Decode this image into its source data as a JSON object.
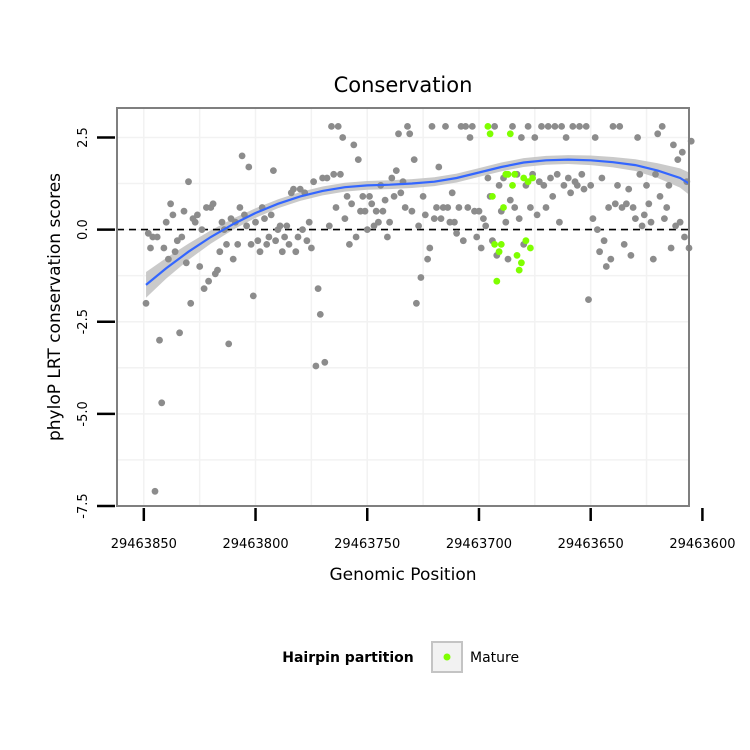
{
  "chart_data": {
    "type": "scatter",
    "title": "Conservation",
    "xlabel": "Genomic Position",
    "ylabel": "phyloP LRT conservation scores",
    "x_reversed": true,
    "xlim": [
      29463862,
      29463606
    ],
    "ylim": [
      -7.5,
      3.3
    ],
    "x_ticks": [
      29463850,
      29463800,
      29463750,
      29463700,
      29463650,
      29463600
    ],
    "x_tick_labels": [
      "29463850",
      "29463800",
      "29463750",
      "29463700",
      "29463650",
      "29463600"
    ],
    "y_ticks": [
      -7.5,
      -5.0,
      -2.5,
      0.0,
      2.5
    ],
    "y_tick_labels": [
      "-7.5",
      "-5.0",
      "-2.5",
      "0.0",
      "2.5"
    ],
    "hline": {
      "y": 0,
      "style": "dashed",
      "color": "#000000"
    },
    "grid": true,
    "colors": {
      "other": "#8c8c8c",
      "mature": "#7fff00",
      "smooth": "#3366ff",
      "ribbon": "#c4c4c4",
      "panel_border": "#7f7f7f",
      "grid": "#f2f2f2"
    },
    "legend": {
      "title": "Hairpin partition",
      "placement": "bottom",
      "entries": [
        {
          "label": "Mature",
          "color": "#7fff00"
        }
      ]
    },
    "series": [
      {
        "group": "other",
        "points": [
          [
            29463849,
            -2.0
          ],
          [
            29463848,
            -0.1
          ],
          [
            29463847,
            -0.5
          ],
          [
            29463846,
            -0.2
          ],
          [
            29463845,
            -7.1
          ],
          [
            29463844,
            -0.2
          ],
          [
            29463843,
            -3.0
          ],
          [
            29463842,
            -4.7
          ],
          [
            29463841,
            -0.5
          ],
          [
            29463840,
            0.2
          ],
          [
            29463839,
            -0.8
          ],
          [
            29463838,
            0.7
          ],
          [
            29463837,
            0.4
          ],
          [
            29463836,
            -0.6
          ],
          [
            29463835,
            -0.3
          ],
          [
            29463834,
            -2.8
          ],
          [
            29463833,
            -0.2
          ],
          [
            29463832,
            0.5
          ],
          [
            29463831,
            -0.9
          ],
          [
            29463830,
            1.3
          ],
          [
            29463829,
            -2.0
          ],
          [
            29463828,
            0.3
          ],
          [
            29463827,
            0.2
          ],
          [
            29463826,
            0.4
          ],
          [
            29463825,
            -1.0
          ],
          [
            29463824,
            0.0
          ],
          [
            29463823,
            -1.6
          ],
          [
            29463822,
            0.6
          ],
          [
            29463821,
            -1.4
          ],
          [
            29463820,
            0.6
          ],
          [
            29463819,
            0.7
          ],
          [
            29463818,
            -1.2
          ],
          [
            29463817,
            -1.1
          ],
          [
            29463816,
            -0.6
          ],
          [
            29463815,
            0.2
          ],
          [
            29463814,
            0.0
          ],
          [
            29463813,
            -0.4
          ],
          [
            29463812,
            -3.1
          ],
          [
            29463811,
            0.3
          ],
          [
            29463810,
            -0.8
          ],
          [
            29463809,
            0.2
          ],
          [
            29463808,
            -0.4
          ],
          [
            29463807,
            0.6
          ],
          [
            29463806,
            2.0
          ],
          [
            29463805,
            0.4
          ],
          [
            29463804,
            0.1
          ],
          [
            29463803,
            1.7
          ],
          [
            29463802,
            -0.4
          ],
          [
            29463801,
            -1.8
          ],
          [
            29463800,
            0.2
          ],
          [
            29463799,
            -0.3
          ],
          [
            29463798,
            -0.6
          ],
          [
            29463797,
            0.6
          ],
          [
            29463796,
            0.3
          ],
          [
            29463795,
            -0.4
          ],
          [
            29463794,
            -0.2
          ],
          [
            29463793,
            0.4
          ],
          [
            29463792,
            1.6
          ],
          [
            29463791,
            -0.3
          ],
          [
            29463790,
            0.0
          ],
          [
            29463789,
            0.1
          ],
          [
            29463788,
            -0.6
          ],
          [
            29463787,
            -0.2
          ],
          [
            29463786,
            0.1
          ],
          [
            29463785,
            -0.4
          ],
          [
            29463784,
            1.0
          ],
          [
            29463783,
            1.1
          ],
          [
            29463782,
            -0.6
          ],
          [
            29463781,
            -0.2
          ],
          [
            29463780,
            1.1
          ],
          [
            29463779,
            0.0
          ],
          [
            29463778,
            1.0
          ],
          [
            29463777,
            -0.3
          ],
          [
            29463776,
            0.2
          ],
          [
            29463775,
            -0.5
          ],
          [
            29463774,
            1.3
          ],
          [
            29463773,
            -3.7
          ],
          [
            29463772,
            -1.6
          ],
          [
            29463771,
            -2.3
          ],
          [
            29463770,
            1.4
          ],
          [
            29463769,
            -3.6
          ],
          [
            29463768,
            1.4
          ],
          [
            29463767,
            0.1
          ],
          [
            29463766,
            2.8
          ],
          [
            29463765,
            1.5
          ],
          [
            29463764,
            0.6
          ],
          [
            29463763,
            2.8
          ],
          [
            29463762,
            1.5
          ],
          [
            29463761,
            2.5
          ],
          [
            29463760,
            0.3
          ],
          [
            29463759,
            0.9
          ],
          [
            29463758,
            -0.4
          ],
          [
            29463757,
            0.7
          ],
          [
            29463756,
            2.3
          ],
          [
            29463755,
            -0.2
          ],
          [
            29463754,
            1.9
          ],
          [
            29463753,
            0.5
          ],
          [
            29463752,
            0.9
          ],
          [
            29463751,
            0.5
          ],
          [
            29463750,
            0.0
          ],
          [
            29463749,
            0.9
          ],
          [
            29463748,
            0.7
          ],
          [
            29463747,
            0.1
          ],
          [
            29463746,
            0.5
          ],
          [
            29463745,
            0.2
          ],
          [
            29463744,
            1.2
          ],
          [
            29463743,
            0.5
          ],
          [
            29463742,
            0.8
          ],
          [
            29463741,
            -0.2
          ],
          [
            29463740,
            0.2
          ],
          [
            29463739,
            1.4
          ],
          [
            29463738,
            0.9
          ],
          [
            29463737,
            1.6
          ],
          [
            29463736,
            2.6
          ],
          [
            29463735,
            1.0
          ],
          [
            29463734,
            1.3
          ],
          [
            29463733,
            0.6
          ],
          [
            29463732,
            2.8
          ],
          [
            29463731,
            2.6
          ],
          [
            29463730,
            0.5
          ],
          [
            29463729,
            1.9
          ],
          [
            29463728,
            -2.0
          ],
          [
            29463727,
            0.1
          ],
          [
            29463726,
            -1.3
          ],
          [
            29463725,
            0.9
          ],
          [
            29463724,
            0.4
          ],
          [
            29463723,
            -0.8
          ],
          [
            29463722,
            -0.5
          ],
          [
            29463721,
            2.8
          ],
          [
            29463720,
            0.3
          ],
          [
            29463719,
            0.6
          ],
          [
            29463718,
            1.7
          ],
          [
            29463717,
            0.3
          ],
          [
            29463716,
            0.6
          ],
          [
            29463715,
            2.8
          ],
          [
            29463714,
            0.6
          ],
          [
            29463713,
            0.2
          ],
          [
            29463712,
            1.0
          ],
          [
            29463711,
            0.2
          ],
          [
            29463710,
            -0.1
          ],
          [
            29463709,
            0.6
          ],
          [
            29463708,
            2.8
          ],
          [
            29463707,
            -0.3
          ],
          [
            29463706,
            2.8
          ],
          [
            29463705,
            0.6
          ],
          [
            29463704,
            2.5
          ],
          [
            29463703,
            2.8
          ],
          [
            29463702,
            0.5
          ],
          [
            29463701,
            -0.2
          ],
          [
            29463700,
            0.5
          ],
          [
            29463699,
            -0.5
          ],
          [
            29463698,
            0.3
          ],
          [
            29463697,
            0.1
          ],
          [
            29463696,
            1.4
          ],
          [
            29463695,
            0.9
          ],
          [
            29463694,
            -0.3
          ],
          [
            29463693,
            2.8
          ],
          [
            29463692,
            -0.7
          ],
          [
            29463691,
            1.2
          ],
          [
            29463690,
            0.5
          ],
          [
            29463689,
            1.4
          ],
          [
            29463688,
            0.2
          ],
          [
            29463687,
            -0.8
          ],
          [
            29463686,
            0.8
          ],
          [
            29463685,
            2.8
          ],
          [
            29463684,
            0.6
          ],
          [
            29463683,
            1.5
          ],
          [
            29463682,
            0.3
          ],
          [
            29463681,
            2.5
          ],
          [
            29463680,
            -0.4
          ],
          [
            29463679,
            1.2
          ],
          [
            29463678,
            2.8
          ],
          [
            29463677,
            0.6
          ],
          [
            29463676,
            1.5
          ],
          [
            29463675,
            2.5
          ],
          [
            29463674,
            0.4
          ],
          [
            29463673,
            1.3
          ],
          [
            29463672,
            2.8
          ],
          [
            29463671,
            1.2
          ],
          [
            29463670,
            0.6
          ],
          [
            29463669,
            2.8
          ],
          [
            29463668,
            1.4
          ],
          [
            29463667,
            0.9
          ],
          [
            29463666,
            2.8
          ],
          [
            29463665,
            1.5
          ],
          [
            29463664,
            0.2
          ],
          [
            29463663,
            2.8
          ],
          [
            29463662,
            1.2
          ],
          [
            29463661,
            2.5
          ],
          [
            29463660,
            1.4
          ],
          [
            29463659,
            1.0
          ],
          [
            29463658,
            2.8
          ],
          [
            29463657,
            1.3
          ],
          [
            29463656,
            1.2
          ],
          [
            29463655,
            2.8
          ],
          [
            29463654,
            1.5
          ],
          [
            29463653,
            1.1
          ],
          [
            29463652,
            2.8
          ],
          [
            29463651,
            -1.9
          ],
          [
            29463650,
            1.2
          ],
          [
            29463649,
            0.3
          ],
          [
            29463648,
            2.5
          ],
          [
            29463647,
            0.0
          ],
          [
            29463646,
            -0.6
          ],
          [
            29463645,
            1.4
          ],
          [
            29463644,
            -0.3
          ],
          [
            29463643,
            -1.0
          ],
          [
            29463642,
            0.6
          ],
          [
            29463641,
            -0.8
          ],
          [
            29463640,
            2.8
          ],
          [
            29463639,
            0.7
          ],
          [
            29463638,
            1.2
          ],
          [
            29463637,
            2.8
          ],
          [
            29463636,
            0.6
          ],
          [
            29463635,
            -0.4
          ],
          [
            29463634,
            0.7
          ],
          [
            29463633,
            1.1
          ],
          [
            29463632,
            -0.7
          ],
          [
            29463631,
            0.6
          ],
          [
            29463630,
            0.3
          ],
          [
            29463629,
            2.5
          ],
          [
            29463628,
            1.5
          ],
          [
            29463627,
            0.1
          ],
          [
            29463626,
            0.4
          ],
          [
            29463625,
            1.2
          ],
          [
            29463624,
            0.7
          ],
          [
            29463623,
            0.2
          ],
          [
            29463622,
            -0.8
          ],
          [
            29463621,
            1.5
          ],
          [
            29463620,
            2.6
          ],
          [
            29463619,
            0.9
          ],
          [
            29463618,
            2.8
          ],
          [
            29463617,
            0.3
          ],
          [
            29463616,
            0.6
          ],
          [
            29463615,
            1.2
          ],
          [
            29463614,
            -0.5
          ],
          [
            29463613,
            2.3
          ],
          [
            29463612,
            0.1
          ],
          [
            29463611,
            1.9
          ],
          [
            29463610,
            0.2
          ],
          [
            29463609,
            2.1
          ],
          [
            29463608,
            -0.2
          ],
          [
            29463607,
            1.3
          ],
          [
            29463606,
            -0.5
          ],
          [
            29463605,
            2.4
          ]
        ]
      },
      {
        "group": "mature",
        "name": "Mature",
        "points": [
          [
            29463696,
            2.8
          ],
          [
            29463695,
            2.6
          ],
          [
            29463694,
            0.9
          ],
          [
            29463693,
            -0.4
          ],
          [
            29463692,
            -1.4
          ],
          [
            29463691,
            -0.6
          ],
          [
            29463690,
            -0.4
          ],
          [
            29463689,
            0.6
          ],
          [
            29463688,
            1.5
          ],
          [
            29463687,
            1.5
          ],
          [
            29463686,
            2.6
          ],
          [
            29463685,
            1.2
          ],
          [
            29463684,
            1.5
          ],
          [
            29463683,
            -0.7
          ],
          [
            29463682,
            -1.1
          ],
          [
            29463681,
            -0.9
          ],
          [
            29463680,
            1.4
          ],
          [
            29463679,
            -0.3
          ],
          [
            29463678,
            1.3
          ],
          [
            29463677,
            -0.5
          ],
          [
            29463676,
            1.4
          ]
        ]
      }
    ],
    "smooth": {
      "x": [
        29463849,
        29463840,
        29463830,
        29463820,
        29463810,
        29463800,
        29463790,
        29463780,
        29463770,
        29463760,
        29463750,
        29463740,
        29463730,
        29463720,
        29463710,
        29463700,
        29463690,
        29463680,
        29463670,
        29463660,
        29463650,
        29463640,
        29463630,
        29463620,
        29463610,
        29463606
      ],
      "y": [
        -1.5,
        -1.05,
        -0.6,
        -0.2,
        0.15,
        0.45,
        0.7,
        0.9,
        1.05,
        1.15,
        1.2,
        1.22,
        1.25,
        1.3,
        1.4,
        1.55,
        1.7,
        1.82,
        1.88,
        1.9,
        1.88,
        1.83,
        1.75,
        1.6,
        1.4,
        1.25
      ],
      "se": [
        0.35,
        0.28,
        0.22,
        0.18,
        0.15,
        0.13,
        0.12,
        0.12,
        0.12,
        0.12,
        0.12,
        0.12,
        0.12,
        0.12,
        0.12,
        0.12,
        0.12,
        0.12,
        0.12,
        0.12,
        0.13,
        0.14,
        0.16,
        0.2,
        0.26,
        0.3
      ]
    }
  }
}
